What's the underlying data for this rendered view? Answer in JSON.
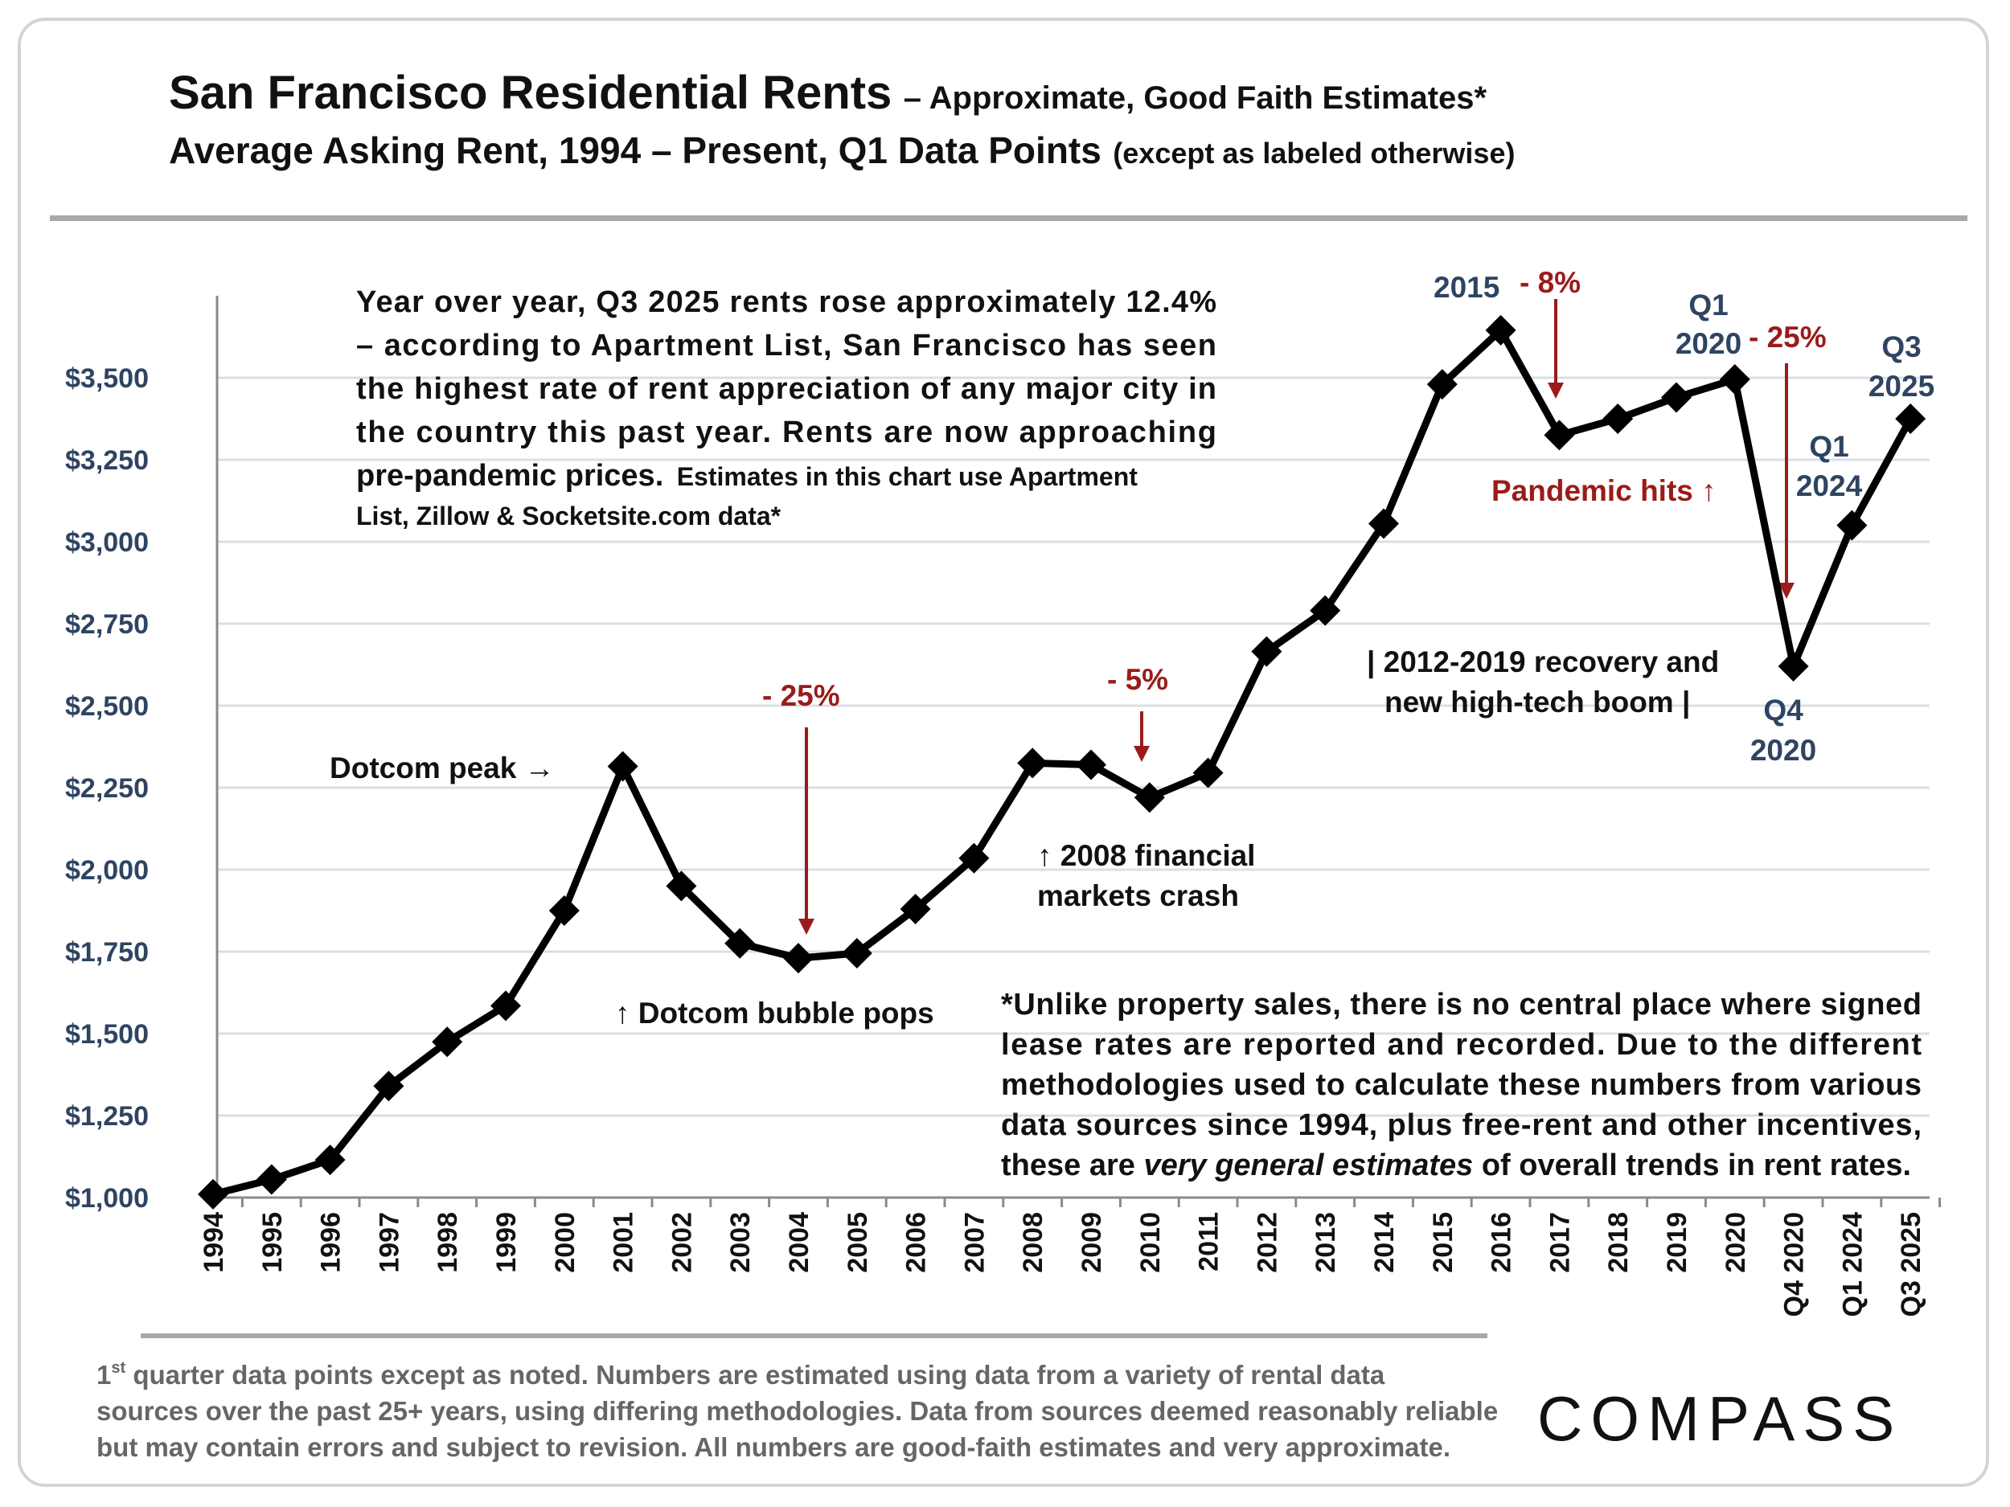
{
  "title": {
    "main": "San Francisco Residential Rents",
    "main_sub": "– Approximate, Good Faith Estimates*",
    "line2": "Average Asking Rent, 1994 – Present, Q1 Data Points",
    "line2_sub": "(except as labeled otherwise)"
  },
  "chart_data": {
    "type": "line",
    "categories": [
      "1994",
      "1995",
      "1996",
      "1997",
      "1998",
      "1999",
      "2000",
      "2001",
      "2002",
      "2003",
      "2004",
      "2005",
      "2006",
      "2007",
      "2008",
      "2009",
      "2010",
      "2011",
      "2012",
      "2013",
      "2014",
      "2015",
      "2016",
      "2017",
      "2018",
      "2019",
      "2020",
      "Q4 2020",
      "Q1 2024",
      "Q3 2025"
    ],
    "series": [
      {
        "values": [
          1010,
          1055,
          1115,
          1340,
          1475,
          1585,
          1875,
          2315,
          1950,
          1775,
          1730,
          1745,
          1880,
          2035,
          2325,
          2320,
          2220,
          2295,
          2665,
          2790,
          3055,
          3480,
          3645,
          3325,
          3375,
          3440,
          3495,
          2620,
          3050,
          3375
        ]
      }
    ],
    "ylim": [
      1000,
      3750
    ],
    "yticks": [
      "$1,000",
      "$1,250",
      "$1,500",
      "$1,750",
      "$2,000",
      "$2,250",
      "$2,500",
      "$2,750",
      "$3,000",
      "$3,250",
      "$3,500"
    ],
    "ytick_values": [
      1000,
      1250,
      1500,
      1750,
      2000,
      2250,
      2500,
      2750,
      3000,
      3250,
      3500
    ],
    "grid": true,
    "marker": "diamond"
  },
  "annotations": {
    "dotcom_peak": "Dotcom peak →",
    "dotcom_pops": "↑ Dotcom bubble pops",
    "drop_25_a": "- 25%",
    "drop_5": "- 5%",
    "crash_l1": "↑ 2008 financial",
    "crash_l2": "markets crash",
    "recovery_l1": "| 2012-2019 recovery and",
    "recovery_l2": "new high-tech boom |",
    "l2015": "2015",
    "drop_8": "- 8%",
    "pandemic": "Pandemic hits ↑",
    "q1_2020_a": "Q1",
    "q1_2020_b": "2020",
    "drop_25_b": "- 25%",
    "q3_2025_a": "Q3",
    "q3_2025_b": "2025",
    "q1_2024_a": "Q1",
    "q1_2024_b": "2024",
    "q4_2020_a": "Q4",
    "q4_2020_b": "2020"
  },
  "paragraph": {
    "l1": "Year over year, Q3 2025 rents rose approximately 12.4%",
    "l2": "– according to Apartment List, San Francisco has seen",
    "l3": "the highest rate of rent appreciation of any major city in",
    "l4": "the country this past year. Rents are now approaching",
    "l5a": "pre-pandemic prices.",
    "l5b": "Estimates in this chart use Apartment",
    "l6": "List, Zillow & Socketsite.com data*"
  },
  "note": {
    "l1": "*Unlike property sales, there is no central place where signed",
    "l2": "lease rates are reported and recorded. Due to the different",
    "l3": "methodologies used to calculate these numbers from various",
    "l4": "data sources since 1994, plus free-rent and other incentives,",
    "l5a": "these are ",
    "l5b": "very general estimates",
    "l5c": " of overall trends in rent rates."
  },
  "footer": {
    "sup": "st",
    "l1a": "1",
    "l1b": " quarter data points except as noted. Numbers are estimated using data from a variety of rental data",
    "l2": "sources over the past 25+ years, using differing methodologies. Data from sources deemed reasonably reliable",
    "l3": "but may contain errors and subject to revision. All numbers are good-faith estimates and very approximate."
  },
  "brand": "COMPASS",
  "colors": {
    "line": "#000000",
    "axis_label": "#2e4461",
    "accent_red": "#9b1b1b",
    "grid": "#d9dfe8"
  }
}
